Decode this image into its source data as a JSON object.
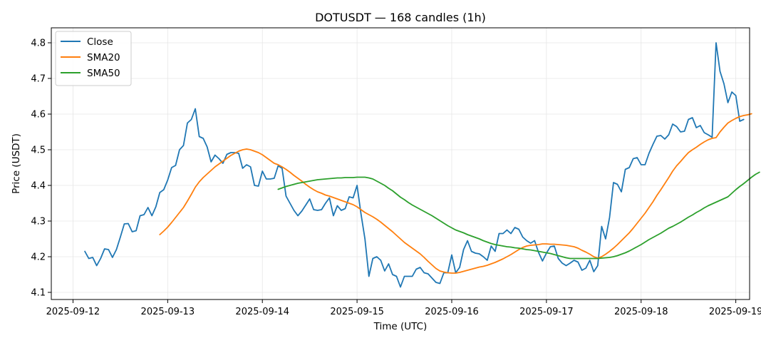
{
  "chart_data": {
    "type": "line",
    "title": "DOTUSDT — 168 candles (1h)",
    "xlabel": "Time (UTC)",
    "ylabel": "Price (USDT)",
    "xlim": [
      -8.5,
      168.5
    ],
    "ylim": [
      4.08,
      4.842
    ],
    "x_ticks": [
      {
        "label": "2025-09-12",
        "x": -3
      },
      {
        "label": "2025-09-13",
        "x": 21
      },
      {
        "label": "2025-09-14",
        "x": 45
      },
      {
        "label": "2025-09-15",
        "x": 69
      },
      {
        "label": "2025-09-16",
        "x": 93
      },
      {
        "label": "2025-09-17",
        "x": 117
      },
      {
        "label": "2025-09-18",
        "x": 141
      },
      {
        "label": "2025-09-19",
        "x": 165
      }
    ],
    "y_ticks": [
      4.1,
      4.2,
      4.3,
      4.4,
      4.5,
      4.6,
      4.7,
      4.8
    ],
    "grid": true,
    "legend_position": "top-left",
    "colors": {
      "close": "#1f77b4",
      "sma20": "#ff7f0e",
      "sma50": "#2ca02c"
    },
    "series": [
      {
        "name": "Close",
        "key": "close",
        "start_index": 0,
        "values": [
          4.215,
          4.195,
          4.198,
          4.175,
          4.195,
          4.222,
          4.22,
          4.198,
          4.22,
          4.255,
          4.292,
          4.293,
          4.27,
          4.273,
          4.315,
          4.318,
          4.338,
          4.315,
          4.34,
          4.38,
          4.388,
          4.415,
          4.45,
          4.456,
          4.5,
          4.512,
          4.575,
          4.585,
          4.615,
          4.537,
          4.532,
          4.508,
          4.466,
          4.485,
          4.475,
          4.462,
          4.487,
          4.492,
          4.492,
          4.49,
          4.448,
          4.458,
          4.452,
          4.4,
          4.398,
          4.44,
          4.418,
          4.418,
          4.42,
          4.455,
          4.448,
          4.37,
          4.35,
          4.33,
          4.315,
          4.328,
          4.345,
          4.362,
          4.332,
          4.33,
          4.332,
          4.35,
          4.365,
          4.315,
          4.343,
          4.33,
          4.335,
          4.368,
          4.365,
          4.4,
          4.32,
          4.25,
          4.145,
          4.195,
          4.2,
          4.19,
          4.16,
          4.18,
          4.15,
          4.145,
          4.115,
          4.145,
          4.145,
          4.145,
          4.165,
          4.17,
          4.155,
          4.152,
          4.14,
          4.128,
          4.125,
          4.155,
          4.155,
          4.205,
          4.155,
          4.17,
          4.22,
          4.245,
          4.215,
          4.21,
          4.208,
          4.2,
          4.19,
          4.23,
          4.215,
          4.265,
          4.265,
          4.275,
          4.265,
          4.282,
          4.277,
          4.255,
          4.245,
          4.238,
          4.245,
          4.212,
          4.188,
          4.21,
          4.228,
          4.23,
          4.195,
          4.182,
          4.175,
          4.182,
          4.19,
          4.185,
          4.162,
          4.168,
          4.19,
          4.158,
          4.175,
          4.285,
          4.25,
          4.31,
          4.408,
          4.403,
          4.382,
          4.445,
          4.45,
          4.475,
          4.478,
          4.458,
          4.458,
          4.49,
          4.515,
          4.538,
          4.54,
          4.53,
          4.542,
          4.572,
          4.565,
          4.55,
          4.552,
          4.585,
          4.59,
          4.562,
          4.568,
          4.548,
          4.542,
          4.535,
          4.8,
          4.72,
          4.685,
          4.632,
          4.662,
          4.652,
          4.58,
          4.585
        ]
      },
      {
        "name": "SMA20",
        "key": "sma20",
        "start_index": 19,
        "values": [
          4.262,
          4.272,
          4.283,
          4.296,
          4.31,
          4.324,
          4.338,
          4.356,
          4.375,
          4.395,
          4.41,
          4.422,
          4.432,
          4.442,
          4.452,
          4.46,
          4.468,
          4.476,
          4.484,
          4.49,
          4.496,
          4.5,
          4.502,
          4.5,
          4.496,
          4.492,
          4.486,
          4.478,
          4.47,
          4.462,
          4.458,
          4.452,
          4.445,
          4.437,
          4.428,
          4.42,
          4.412,
          4.403,
          4.395,
          4.388,
          4.382,
          4.378,
          4.373,
          4.37,
          4.366,
          4.362,
          4.358,
          4.354,
          4.35,
          4.346,
          4.34,
          4.332,
          4.324,
          4.318,
          4.312,
          4.305,
          4.297,
          4.288,
          4.279,
          4.27,
          4.26,
          4.25,
          4.24,
          4.232,
          4.224,
          4.216,
          4.208,
          4.198,
          4.187,
          4.177,
          4.167,
          4.16,
          4.157,
          4.155,
          4.154,
          4.154,
          4.156,
          4.159,
          4.162,
          4.165,
          4.168,
          4.171,
          4.173,
          4.176,
          4.18,
          4.184,
          4.189,
          4.194,
          4.2,
          4.206,
          4.213,
          4.22,
          4.226,
          4.23,
          4.232,
          4.233,
          4.234,
          4.236,
          4.236,
          4.235,
          4.235,
          4.234,
          4.233,
          4.232,
          4.23,
          4.228,
          4.224,
          4.218,
          4.213,
          4.207,
          4.2,
          4.196,
          4.2,
          4.207,
          4.215,
          4.224,
          4.234,
          4.245,
          4.256,
          4.267,
          4.28,
          4.294,
          4.308,
          4.322,
          4.338,
          4.354,
          4.372,
          4.388,
          4.405,
          4.422,
          4.44,
          4.455,
          4.467,
          4.48,
          4.492,
          4.5,
          4.507,
          4.515,
          4.522,
          4.528,
          4.532,
          4.534,
          4.55,
          4.563,
          4.575,
          4.582,
          4.588,
          4.593,
          4.596,
          4.598,
          4.601
        ]
      },
      {
        "name": "SMA50",
        "key": "sma50",
        "start_index": 49,
        "values": [
          4.389,
          4.393,
          4.397,
          4.4,
          4.403,
          4.406,
          4.408,
          4.41,
          4.412,
          4.414,
          4.416,
          4.417,
          4.418,
          4.419,
          4.42,
          4.421,
          4.421,
          4.422,
          4.422,
          4.422,
          4.423,
          4.423,
          4.423,
          4.421,
          4.418,
          4.412,
          4.406,
          4.4,
          4.392,
          4.385,
          4.376,
          4.367,
          4.36,
          4.352,
          4.345,
          4.339,
          4.333,
          4.327,
          4.321,
          4.315,
          4.308,
          4.301,
          4.294,
          4.287,
          4.281,
          4.275,
          4.271,
          4.267,
          4.262,
          4.258,
          4.254,
          4.25,
          4.245,
          4.241,
          4.237,
          4.234,
          4.232,
          4.23,
          4.228,
          4.227,
          4.225,
          4.224,
          4.222,
          4.22,
          4.219,
          4.217,
          4.215,
          4.213,
          4.211,
          4.209,
          4.206,
          4.203,
          4.2,
          4.197,
          4.195,
          4.195,
          4.195,
          4.195,
          4.195,
          4.195,
          4.195,
          4.195,
          4.196,
          4.197,
          4.198,
          4.2,
          4.203,
          4.207,
          4.211,
          4.216,
          4.222,
          4.228,
          4.234,
          4.241,
          4.248,
          4.254,
          4.26,
          4.266,
          4.273,
          4.28,
          4.285,
          4.291,
          4.297,
          4.304,
          4.311,
          4.317,
          4.324,
          4.33,
          4.337,
          4.343,
          4.348,
          4.353,
          4.358,
          4.363,
          4.368,
          4.378,
          4.388,
          4.397,
          4.405,
          4.414,
          4.423,
          4.431,
          4.437
        ]
      }
    ]
  }
}
